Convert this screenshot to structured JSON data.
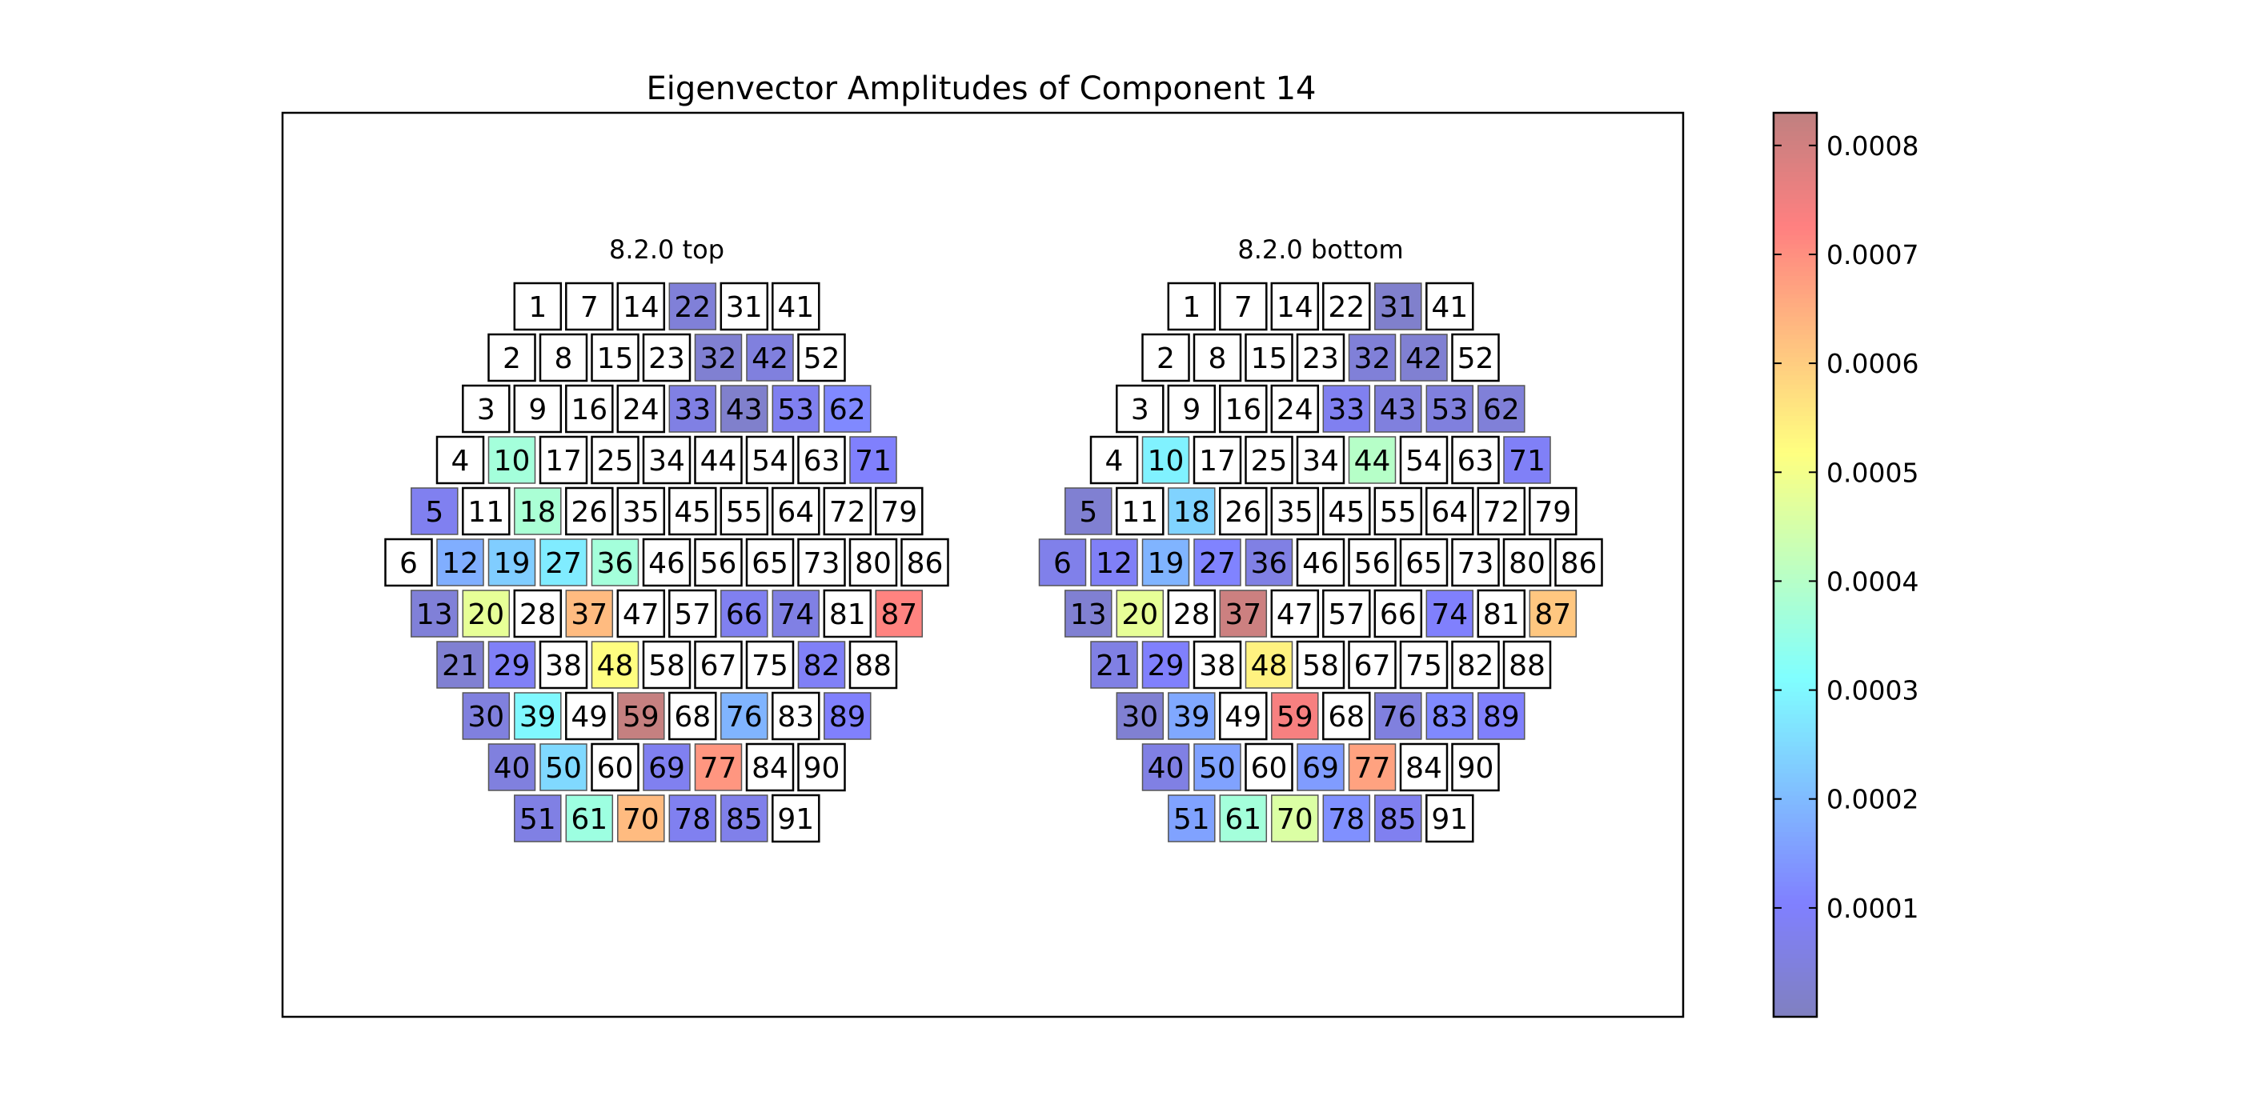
{
  "chart_data": {
    "type": "heatmap",
    "title": "Eigenvector Amplitudes of Component 14",
    "colorbar": {
      "colormap": "jet",
      "alpha": 0.5,
      "min": 0,
      "max": 0.00083,
      "ticks": [
        "0.0001",
        "0.0002",
        "0.0003",
        "0.0004",
        "0.0005",
        "0.0006",
        "0.0007",
        "0.0008"
      ]
    },
    "layout_rows": [
      [
        1,
        7,
        14,
        22,
        31,
        41
      ],
      [
        2,
        8,
        15,
        23,
        32,
        42,
        52
      ],
      [
        3,
        9,
        16,
        24,
        33,
        43,
        53,
        62
      ],
      [
        4,
        10,
        17,
        25,
        34,
        44,
        54,
        63,
        71
      ],
      [
        5,
        11,
        18,
        26,
        35,
        45,
        55,
        64,
        72,
        79
      ],
      [
        6,
        12,
        19,
        27,
        36,
        46,
        56,
        65,
        73,
        80,
        86
      ],
      [
        13,
        20,
        28,
        37,
        47,
        57,
        66,
        74,
        81,
        87
      ],
      [
        21,
        29,
        38,
        48,
        58,
        67,
        75,
        82,
        88
      ],
      [
        30,
        39,
        49,
        59,
        68,
        76,
        83,
        89
      ],
      [
        40,
        50,
        60,
        69,
        77,
        84,
        90
      ],
      [
        51,
        61,
        70,
        78,
        85,
        91
      ]
    ],
    "panels": [
      {
        "title": "8.2.0 top",
        "values": {
          "22": 4e-05,
          "32": 3e-05,
          "42": 5e-05,
          "33": 6e-05,
          "43": 2e-05,
          "53": 8e-05,
          "62": 0.00012,
          "10": 0.00037,
          "71": 0.0001,
          "5": 8e-05,
          "18": 0.00038,
          "12": 0.00018,
          "19": 0.00023,
          "27": 0.00028,
          "36": 0.00037,
          "13": 4e-05,
          "20": 0.00048,
          "37": 0.00063,
          "66": 8e-05,
          "74": 6e-05,
          "87": 0.00072,
          "21": 3e-05,
          "29": 9e-05,
          "48": 0.00052,
          "82": 9e-05,
          "30": 5e-05,
          "39": 0.0003,
          "59": 0.00082,
          "76": 0.00019,
          "89": 0.0001,
          "40": 5e-05,
          "50": 0.00025,
          "69": 8e-05,
          "77": 0.00069,
          "51": 6e-05,
          "61": 0.00036,
          "70": 0.00063,
          "78": 8e-05,
          "85": 7e-05
        }
      },
      {
        "title": "8.2.0 bottom",
        "values": {
          "31": 2e-05,
          "32": 4e-05,
          "42": 3e-05,
          "33": 8e-05,
          "43": 5e-05,
          "53": 5e-05,
          "62": 4e-05,
          "10": 0.00029,
          "44": 0.0004,
          "71": 9e-05,
          "5": 3e-05,
          "18": 0.00024,
          "6": 7e-05,
          "12": 9e-05,
          "19": 0.00019,
          "27": 0.00011,
          "36": 6e-05,
          "13": 3e-05,
          "20": 0.00048,
          "37": 0.00081,
          "74": 0.0001,
          "87": 0.00061,
          "21": 6e-05,
          "29": 0.0001,
          "48": 0.00054,
          "30": 3e-05,
          "39": 0.00017,
          "59": 0.00074,
          "76": 5e-05,
          "83": 0.00012,
          "89": 0.0001,
          "40": 6e-05,
          "50": 0.00016,
          "69": 0.00015,
          "77": 0.00067,
          "51": 0.00016,
          "61": 0.00037,
          "70": 0.00046,
          "78": 0.00013,
          "85": 8e-05
        }
      }
    ]
  }
}
